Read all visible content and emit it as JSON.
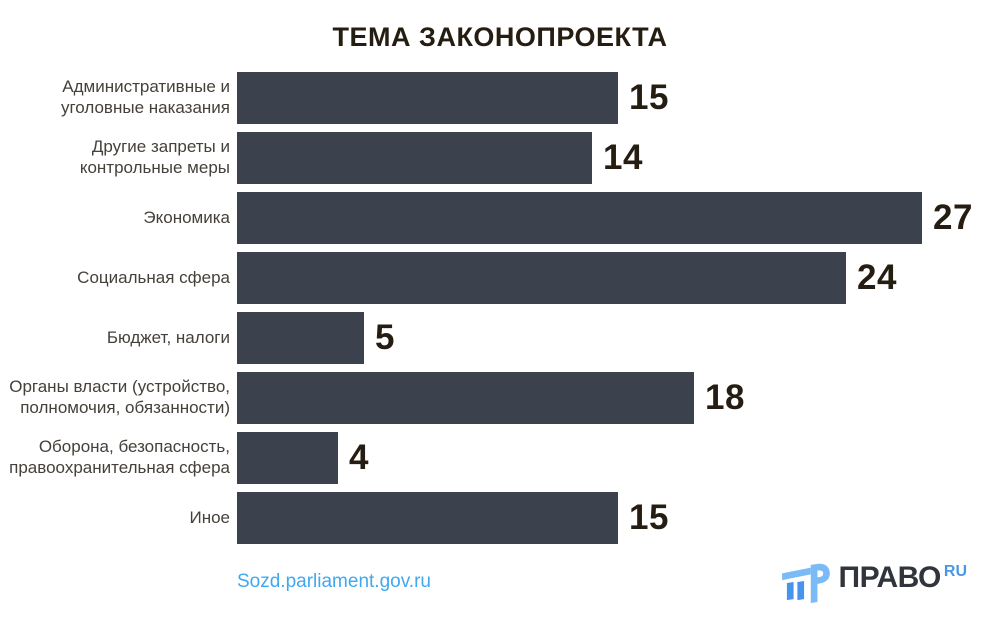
{
  "title": "ТЕМА ЗАКОНОПРОЕКТА",
  "chart_data": {
    "type": "bar",
    "orientation": "horizontal",
    "title": "ТЕМА ЗАКОНОПРОЕКТА",
    "categories": [
      "Административные и уголовные наказания",
      "Другие запреты и контрольные меры",
      "Экономика",
      "Социальная сфера",
      "Бюджет, налоги",
      "Органы власти (устройство, полномочия, обязанности)",
      "Оборона, безопасность, правоохранительная сфера",
      "Иное"
    ],
    "values": [
      15,
      14,
      27,
      24,
      5,
      18,
      4,
      15
    ],
    "xlim": [
      0,
      27
    ],
    "grid": false,
    "legend": false,
    "value_labels": "end-of-bar",
    "bar_color": "#3b414d",
    "value_label_color": "#261d12",
    "category_label_color": "#45403a"
  },
  "footer": {
    "source_link": "Sozd.parliament.gov.ru",
    "source_link_color": "#41a8f0",
    "logo": {
      "icon": "pravo-ru-logo-icon",
      "wordmark": "ПРАВО",
      "suffix": "RU",
      "wordmark_color": "#30343c",
      "suffix_color": "#4a97e8",
      "icon_color_light": "#7abaf7",
      "icon_color_dark": "#4694ee"
    }
  }
}
